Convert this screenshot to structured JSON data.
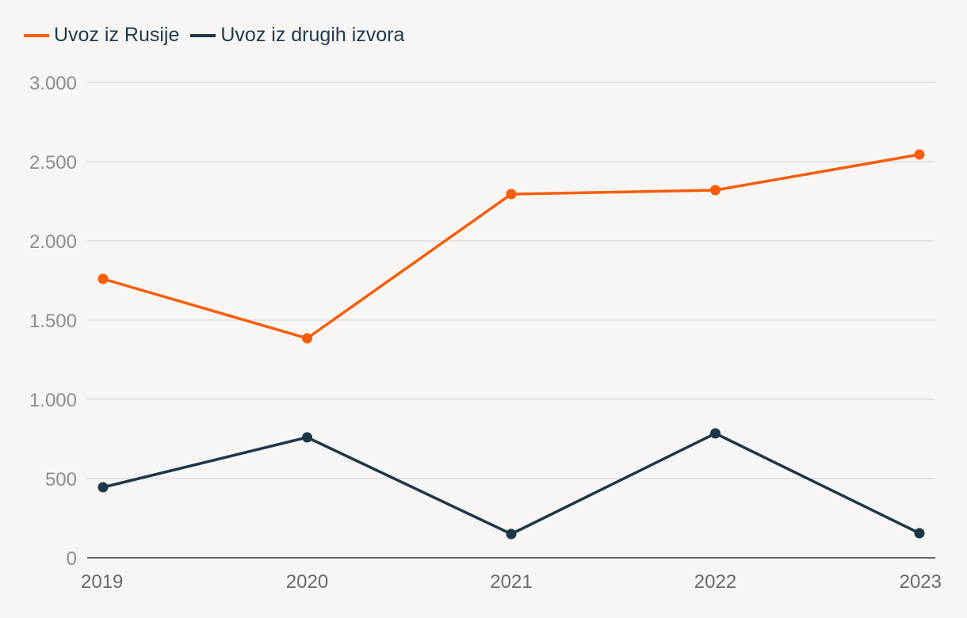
{
  "chart_data": {
    "type": "line",
    "title": "",
    "xlabel": "",
    "ylabel": "",
    "categories": [
      "2019",
      "2020",
      "2021",
      "2022",
      "2023"
    ],
    "ylim": [
      0,
      3000
    ],
    "yticks": [
      {
        "value": 0,
        "label": "0"
      },
      {
        "value": 500,
        "label": "500"
      },
      {
        "value": 1000,
        "label": "1.000"
      },
      {
        "value": 1500,
        "label": "1.500"
      },
      {
        "value": 2000,
        "label": "2.000"
      },
      {
        "value": 2500,
        "label": "2.500"
      },
      {
        "value": 3000,
        "label": "3.000"
      }
    ],
    "grid": true,
    "legend_position": "top-left",
    "series": [
      {
        "name": "Uvoz iz Rusije",
        "color": "#f95d0a",
        "values": [
          1760,
          1385,
          2295,
          2320,
          2545
        ]
      },
      {
        "name": "Uvoz iz drugih izvora",
        "color": "#1d3748",
        "values": [
          445,
          760,
          150,
          785,
          155
        ]
      }
    ]
  },
  "legend": [
    {
      "label": "Uvoz iz Rusije",
      "color": "#f95d0a"
    },
    {
      "label": "Uvoz iz drugih izvora",
      "color": "#1d3748"
    }
  ]
}
